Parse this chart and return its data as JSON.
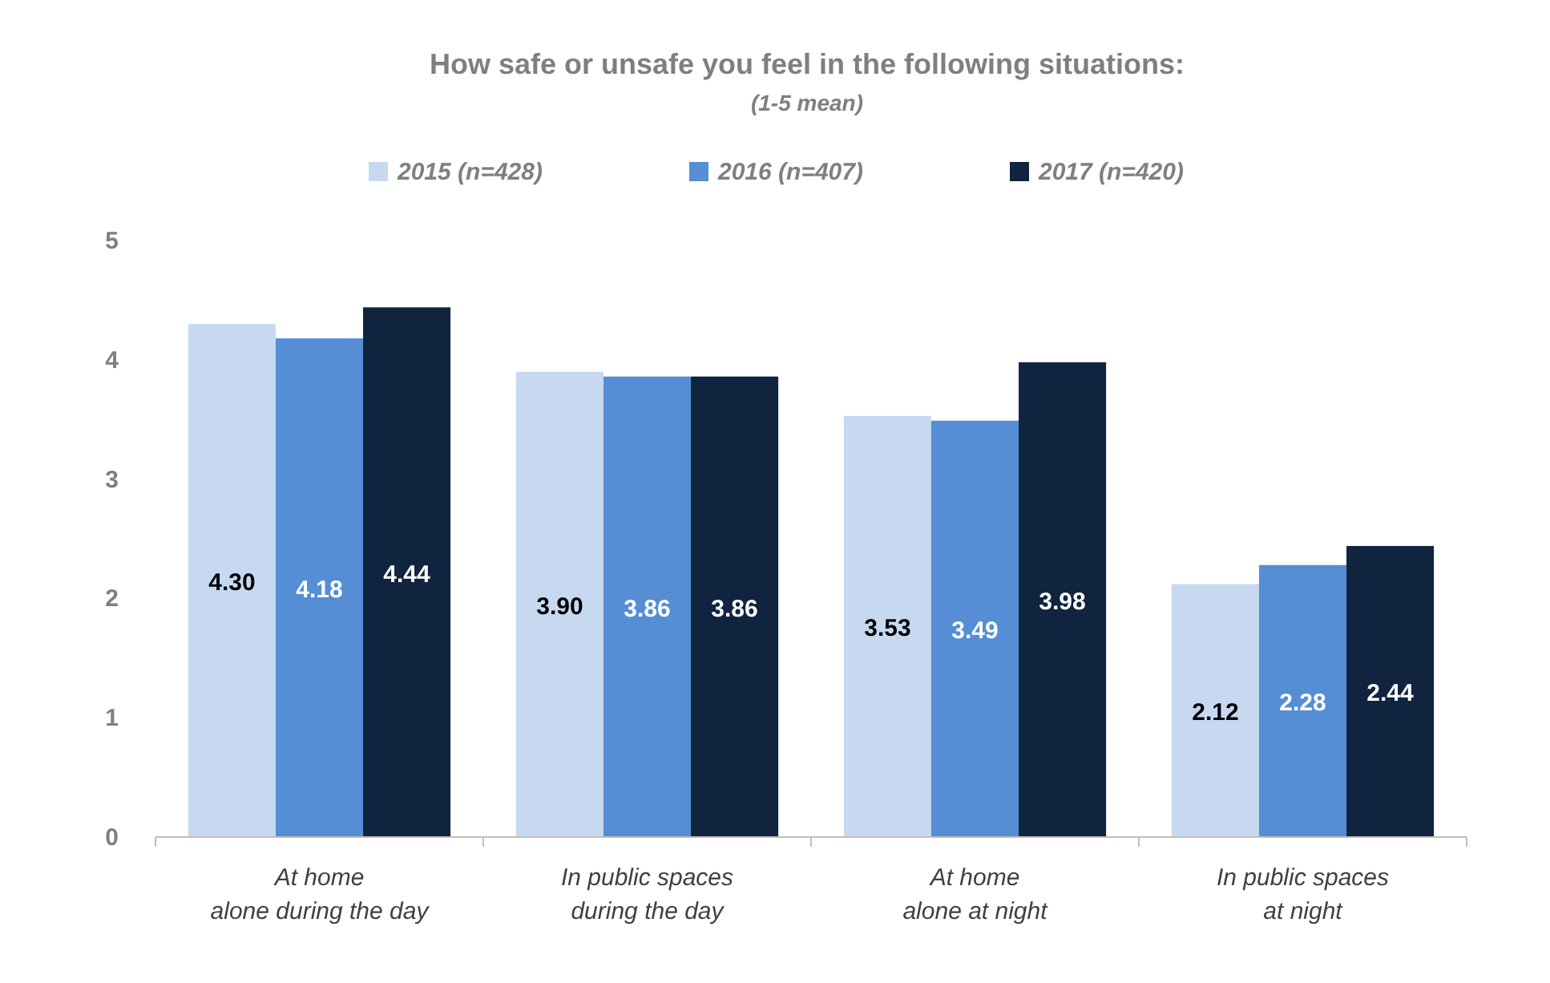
{
  "chart_data": {
    "type": "bar",
    "title": "How safe or unsafe you feel in the following situations:",
    "subtitle": "(1-5 mean)",
    "categories": [
      "At home\nalone during the day",
      "In public spaces\nduring the day",
      "At home\nalone at night",
      "In public spaces\nat night"
    ],
    "series": [
      {
        "name": "2015 (n=428)",
        "color": "#c6d9f1",
        "values": [
          4.3,
          3.9,
          3.53,
          2.12
        ],
        "value_labels": [
          "4.30",
          "3.90",
          "3.53",
          "2.12"
        ]
      },
      {
        "name": "2016 (n=407)",
        "color": "#558ed5",
        "values": [
          4.18,
          3.86,
          3.49,
          2.28
        ],
        "value_labels": [
          "4.18",
          "3.86",
          "3.49",
          "2.28"
        ]
      },
      {
        "name": "2017 (n=420)",
        "color": "#10243f",
        "values": [
          4.44,
          3.86,
          3.98,
          2.44
        ],
        "value_labels": [
          "4.44",
          "3.86",
          "3.98",
          "2.44"
        ]
      }
    ],
    "ylim": [
      0,
      5
    ],
    "yticks": [
      0,
      1,
      2,
      3,
      4,
      5
    ],
    "grid": false,
    "legend": "top"
  }
}
